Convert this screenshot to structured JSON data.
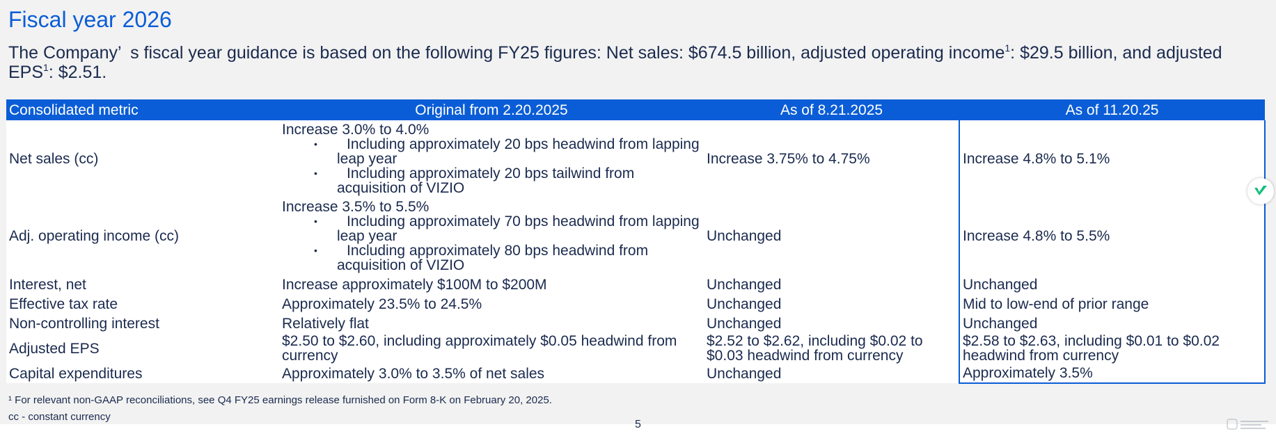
{
  "page": {
    "title": "Fiscal year 2026",
    "intro": {
      "part1": "The Company’ s fiscal year guidance is based on the following FY25 figures: Net sales: $674.5 billion, adjusted operating income",
      "sup1": "1",
      "part2": ": $29.5 billion, and adjusted EPS",
      "sup2": "1",
      "part3": ": $2.51."
    },
    "page_number": "5"
  },
  "table": {
    "headers": [
      "Consolidated metric",
      "Original from 2.20.2025",
      "As of 8.21.2025",
      "As of 11.20.25"
    ],
    "rows": [
      {
        "metric": "Net sales (cc)",
        "original": {
          "main": "Increase 3.0% to 4.0%",
          "bullets": [
            "Including approximately 20 bps headwind from lapping leap year",
            "Including approximately 20 bps tailwind from acquisition of VIZIO"
          ]
        },
        "aug": "Increase 3.75% to 4.75%",
        "nov": "Increase 4.8% to 5.1%"
      },
      {
        "metric": "Adj. operating income (cc)",
        "original": {
          "main": "Increase 3.5% to 5.5%",
          "bullets": [
            "Including approximately 70 bps headwind from lapping leap year",
            "Including approximately 80 bps headwind from acquisition of VIZIO"
          ]
        },
        "aug": "Unchanged",
        "nov": "Increase 4.8% to 5.5%"
      },
      {
        "metric": "Interest, net",
        "original": "Increase approximately $100M to $200M",
        "aug": "Unchanged",
        "nov": "Unchanged"
      },
      {
        "metric": "Effective tax rate",
        "original": "Approximately 23.5% to 24.5%",
        "aug": "Unchanged",
        "nov": "Mid to low-end of prior range"
      },
      {
        "metric": "Non-controlling interest",
        "original": "Relatively flat",
        "aug": "Unchanged",
        "nov": "Unchanged"
      },
      {
        "metric": "Adjusted EPS",
        "original": "$2.50 to $2.60, including approximately $0.05 headwind from currency",
        "aug": "$2.52 to $2.62, including $0.02 to $0.03 headwind from currency",
        "nov": "$2.58 to $2.63, including $0.01 to $0.02 headwind from currency"
      },
      {
        "metric": "Capital expenditures",
        "original": "Approximately 3.0% to 3.5% of net sales",
        "aug": "Unchanged",
        "nov": "Approximately 3.5%"
      }
    ]
  },
  "footnotes": {
    "note1": "¹ For relevant non-GAAP reconciliations, see Q4 FY25 earnings release furnished on Form 8-K on February 20, 2025.",
    "note2": "cc - constant currency"
  },
  "icons": {
    "badge": "checkmark-logo-icon",
    "watermark": "watermark-logo-icon"
  },
  "colors": {
    "accent": "#0a5dd6",
    "text": "#1a2a4e",
    "badge_green": "#12c07a"
  }
}
